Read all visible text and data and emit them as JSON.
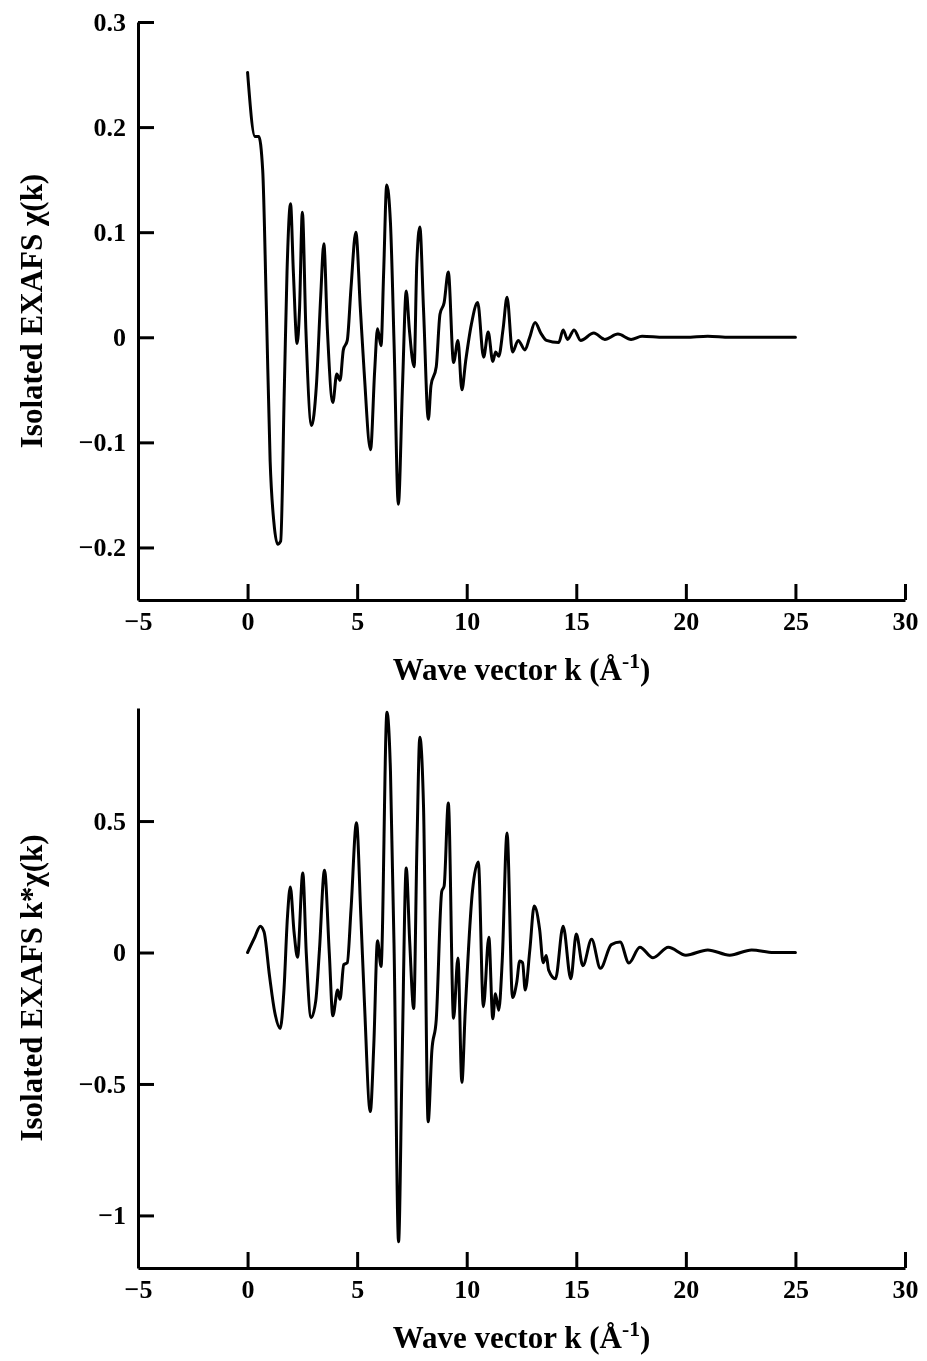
{
  "chart_data": [
    {
      "type": "line",
      "xlabel": "Wave vector k (Å$^{-1}$)",
      "ylabel": "Isolated EXAFS χ(k)",
      "xlim": [
        -5,
        30
      ],
      "xticks": [
        -5,
        0,
        5,
        10,
        15,
        20,
        25,
        30
      ],
      "ylim": [
        -0.25,
        0.3
      ],
      "yticks": [
        -0.2,
        -0.1,
        0,
        0.1,
        0.2,
        0.3
      ],
      "grid": false,
      "series": [
        {
          "color": "#000000",
          "x": [
            0,
            0.34,
            0.51,
            0.69,
            0.86,
            1.03,
            1.2,
            1.37,
            1.51,
            1.68,
            1.8,
            1.96,
            2.09,
            2.26,
            2.37,
            2.5,
            2.66,
            2.92,
            3.14,
            3.34,
            3.48,
            3.64,
            3.89,
            4.07,
            4.22,
            4.37,
            4.55,
            4.72,
            4.94,
            5.15,
            5.32,
            5.61,
            5.8,
            5.93,
            6.09,
            6.21,
            6.35,
            6.52,
            6.69,
            6.88,
            7.07,
            7.24,
            7.38,
            7.6,
            7.72,
            7.86,
            8.03,
            8.25,
            8.37,
            8.61,
            8.78,
            8.97,
            9.16,
            9.4,
            9.6,
            9.78,
            9.95,
            10.21,
            10.5,
            10.77,
            10.98,
            11.19,
            11.32,
            11.46,
            11.66,
            11.84,
            12.09,
            12.35,
            12.66,
            12.86,
            13.12,
            13.38,
            13.64,
            14.2,
            14.4,
            14.6,
            14.9,
            15.2,
            15.8,
            16.3,
            16.9,
            17.5,
            18,
            19,
            20,
            21,
            22,
            25
          ],
          "values": [
            0.252,
            0.191,
            0.191,
            0.159,
            0.026,
            -0.118,
            -0.176,
            -0.197,
            -0.194,
            -0.046,
            0.062,
            0.127,
            0.062,
            -0.006,
            0.026,
            0.119,
            0.008,
            -0.084,
            -0.046,
            0.04,
            0.089,
            0.008,
            -0.062,
            -0.035,
            -0.041,
            -0.012,
            -0.003,
            0.047,
            0.1,
            0.026,
            -0.033,
            -0.107,
            -0.032,
            0.008,
            -0.008,
            0.062,
            0.145,
            0.109,
            -0.01,
            -0.159,
            -0.046,
            0.044,
            0.008,
            -0.028,
            0.069,
            0.105,
            0.026,
            -0.078,
            -0.046,
            -0.028,
            0.022,
            0.033,
            0.062,
            -0.024,
            -0.003,
            -0.05,
            -0.023,
            0.012,
            0.033,
            -0.019,
            0.005,
            -0.023,
            -0.014,
            -0.018,
            0.008,
            0.038,
            -0.014,
            -0.003,
            -0.012,
            -0.001,
            0.014,
            0.004,
            -0.003,
            -0.005,
            0.007,
            -0.002,
            0.007,
            -0.003,
            0.004,
            -0.002,
            0.003,
            -0.002,
            0.001,
            0,
            0,
            0.001,
            0,
            0
          ]
        }
      ]
    },
    {
      "type": "line",
      "xlabel": "Wave vector k (Å$^{-1}$)",
      "ylabel": "Isolated EXAFS k*χ(k)",
      "xlim": [
        -5,
        30
      ],
      "xticks": [
        -5,
        0,
        5,
        10,
        15,
        20,
        25,
        30
      ],
      "ylim": [
        -1.2,
        0.93
      ],
      "yticks": [
        -1,
        -0.5,
        0,
        0.5
      ],
      "grid": false,
      "series": [
        {
          "color": "#000000",
          "x": [
            0,
            0.33,
            0.58,
            0.75,
            1.0,
            1.24,
            1.49,
            1.66,
            1.82,
            1.95,
            2.12,
            2.28,
            2.52,
            2.68,
            2.9,
            3.11,
            3.28,
            3.51,
            3.73,
            3.89,
            4.11,
            4.22,
            4.39,
            4.55,
            4.72,
            4.97,
            5.17,
            5.33,
            5.6,
            5.76,
            5.93,
            6.09,
            6.36,
            6.52,
            6.69,
            6.89,
            7.05,
            7.24,
            7.4,
            7.58,
            7.73,
            7.86,
            8.03,
            8.24,
            8.41,
            8.61,
            8.86,
            8.97,
            9.16,
            9.4,
            9.6,
            9.78,
            9.93,
            10.26,
            10.53,
            10.76,
            11.01,
            11.19,
            11.31,
            11.46,
            11.62,
            11.84,
            12.09,
            12.28,
            12.42,
            12.55,
            12.67,
            12.88,
            13.08,
            13.33,
            13.49,
            13.63,
            13.74,
            14.05,
            14.4,
            14.75,
            15.0,
            15.3,
            15.7,
            16.1,
            16.6,
            17.0,
            17.4,
            17.9,
            18.5,
            19.2,
            20,
            21,
            22,
            23,
            24,
            25
          ],
          "values": [
            0,
            0.058,
            0.1,
            0.079,
            -0.088,
            -0.227,
            -0.289,
            -0.143,
            0.135,
            0.249,
            0.079,
            -0.018,
            0.302,
            -0.004,
            -0.248,
            -0.185,
            0.01,
            0.313,
            -0.004,
            -0.241,
            -0.143,
            -0.178,
            -0.046,
            -0.039,
            0.163,
            0.494,
            0.135,
            -0.185,
            -0.605,
            -0.352,
            0.045,
            -0.053,
            0.914,
            0.691,
            -0.004,
            -1.1,
            -0.421,
            0.321,
            0.038,
            -0.213,
            0.413,
            0.819,
            0.552,
            -0.644,
            -0.373,
            -0.255,
            0.232,
            0.253,
            0.569,
            -0.25,
            -0.021,
            -0.494,
            -0.227,
            0.232,
            0.344,
            -0.206,
            0.058,
            -0.252,
            -0.157,
            -0.22,
            -0.032,
            0.455,
            -0.171,
            -0.115,
            -0.032,
            -0.039,
            -0.143,
            0.01,
            0.177,
            0.086,
            -0.039,
            -0.011,
            -0.067,
            -0.1,
            0.1,
            -0.1,
            0.07,
            -0.05,
            0.05,
            -0.06,
            0.03,
            0.04,
            -0.04,
            0.02,
            -0.02,
            0.02,
            -0.01,
            0.01,
            -0.01,
            0.01,
            0,
            0
          ]
        }
      ]
    }
  ]
}
